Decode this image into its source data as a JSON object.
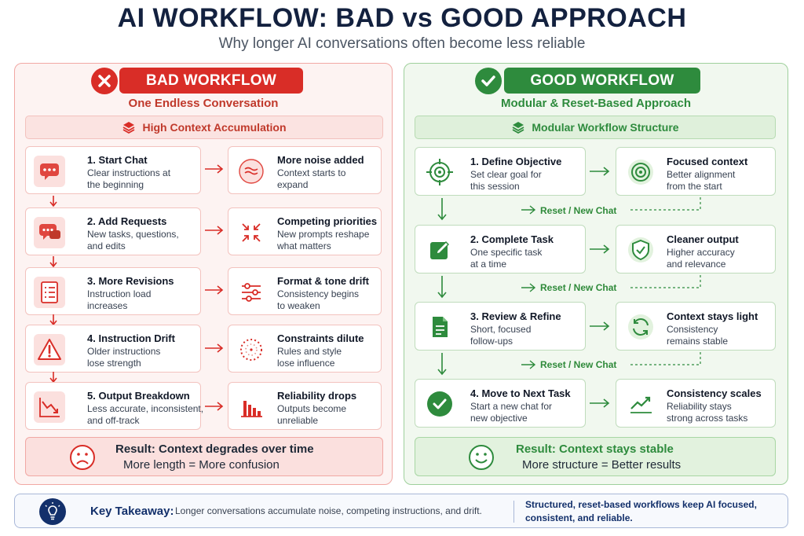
{
  "header": {
    "title": "AI WORKFLOW: BAD vs GOOD APPROACH",
    "subtitle": "Why longer AI conversations often become less reliable"
  },
  "colors": {
    "bad_accent": "#d92d27",
    "good_accent": "#2e8b3d",
    "title_navy": "#13213f"
  },
  "bad": {
    "badge": "BAD WORKFLOW",
    "subtitle": "One Endless Conversation",
    "band": "High Context Accumulation",
    "steps": [
      {
        "title": "1. Start Chat",
        "desc": [
          "Clear instructions at",
          "the beginning"
        ],
        "icon": "chat-bubble-icon"
      },
      {
        "title": "2. Add Requests",
        "desc": [
          "New tasks, questions,",
          "and edits"
        ],
        "icon": "chat-bubbles-icon"
      },
      {
        "title": "3. More Revisions",
        "desc": [
          "Instruction load",
          "increases"
        ],
        "icon": "list-document-icon"
      },
      {
        "title": "4. Instruction Drift",
        "desc": [
          "Older instructions",
          "lose strength"
        ],
        "icon": "warning-icon"
      },
      {
        "title": "5. Output Breakdown",
        "desc": [
          "Less accurate, inconsistent,",
          "and off-track"
        ],
        "icon": "downtrend-chart-icon"
      }
    ],
    "effects": [
      {
        "title": "More noise added",
        "desc": [
          "Context starts to",
          "expand"
        ],
        "icon": "noise-waves-icon"
      },
      {
        "title": "Competing priorities",
        "desc": [
          "New prompts reshape",
          "what matters"
        ],
        "icon": "compress-arrows-icon"
      },
      {
        "title": "Format & tone drift",
        "desc": [
          "Consistency begins",
          "to weaken"
        ],
        "icon": "sliders-icon"
      },
      {
        "title": "Constraints dilute",
        "desc": [
          "Rules and style",
          "lose influence"
        ],
        "icon": "dotted-circle-icon"
      },
      {
        "title": "Reliability drops",
        "desc": [
          "Outputs become",
          "unreliable"
        ],
        "icon": "bar-chart-icon"
      }
    ],
    "result_title": "Result: Context degrades over time",
    "result_sub": "More length = More confusion"
  },
  "good": {
    "badge": "GOOD WORKFLOW",
    "subtitle": "Modular & Reset-Based Approach",
    "band": "Modular Workflow Structure",
    "steps": [
      {
        "title": "1. Define Objective",
        "desc": [
          "Set clear goal for",
          "this session"
        ],
        "icon": "crosshair-target-icon"
      },
      {
        "title": "2. Complete Task",
        "desc": [
          "One specific task",
          "at a time"
        ],
        "icon": "edit-pencil-icon"
      },
      {
        "title": "3. Review & Refine",
        "desc": [
          "Short, focused",
          "follow-ups"
        ],
        "icon": "document-icon"
      },
      {
        "title": "4. Move to Next Task",
        "desc": [
          "Start a new chat for",
          "new objective"
        ],
        "icon": "check-circle-icon"
      }
    ],
    "effects": [
      {
        "title": "Focused context",
        "desc": [
          "Better alignment",
          "from the start"
        ],
        "icon": "target-icon"
      },
      {
        "title": "Cleaner output",
        "desc": [
          "Higher accuracy",
          "and relevance"
        ],
        "icon": "shield-check-icon"
      },
      {
        "title": "Context stays light",
        "desc": [
          "Consistency",
          "remains stable"
        ],
        "icon": "refresh-icon"
      },
      {
        "title": "Consistency scales",
        "desc": [
          "Reliability stays",
          "strong across tasks"
        ],
        "icon": "uptrend-icon"
      }
    ],
    "reset_label": "Reset / New Chat",
    "result_title": "Result: Context stays stable",
    "result_sub": "More structure = Better results"
  },
  "takeaway": {
    "label": "Key Takeaway:",
    "text1": "Longer conversations accumulate noise, competing instructions, and drift.",
    "text2": [
      "Structured, reset-based workflows keep AI focused,",
      "consistent, and reliable."
    ]
  }
}
